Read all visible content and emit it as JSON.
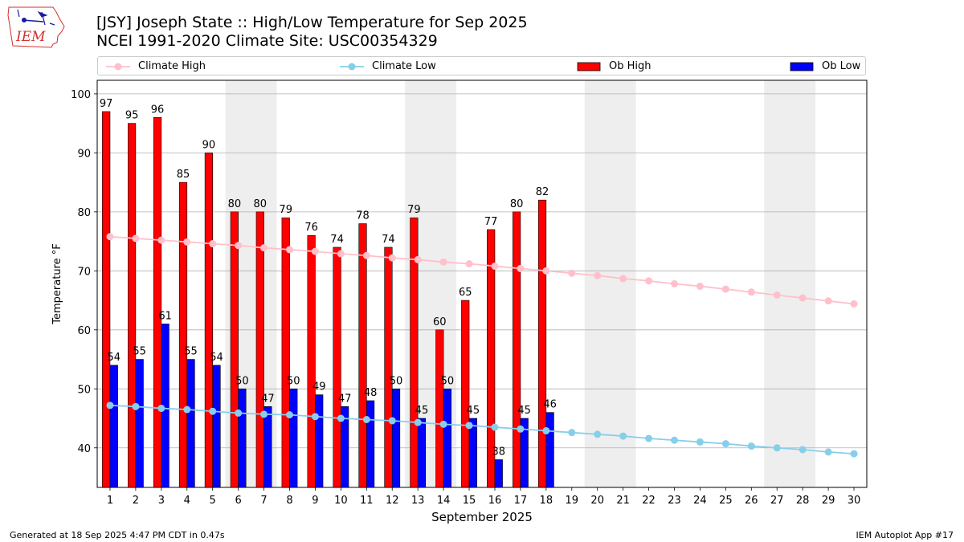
{
  "logo": {
    "text": "IEM",
    "icon": "iowa-state-outline-weather-station-icon"
  },
  "title_line1": "[JSY] Joseph State :: High/Low Temperature for Sep 2025",
  "title_line2": "NCEI 1991-2020 Climate Site: USC00354329",
  "footer_left": "Generated at 18 Sep 2025 4:47 PM CDT in 0.47s",
  "footer_right": "IEM Autoplot App #17",
  "colors": {
    "ob_high": "#ff0000",
    "ob_low": "#0000ff",
    "climate_high": "#ffc0cb",
    "climate_low": "#87ceeb",
    "weekend_band": "#eeeeee",
    "grid": "#b0b0b0"
  },
  "chart_data": {
    "type": "bar",
    "xlabel": "September 2025",
    "ylabel": "Temperature °F",
    "xlim": [
      0.5,
      30.5
    ],
    "ylim": [
      33.3,
      102.3
    ],
    "x_ticks": [
      1,
      2,
      3,
      4,
      5,
      6,
      7,
      8,
      9,
      10,
      11,
      12,
      13,
      14,
      15,
      16,
      17,
      18,
      19,
      20,
      21,
      22,
      23,
      24,
      25,
      26,
      27,
      28,
      29,
      30
    ],
    "y_ticks": [
      40,
      50,
      60,
      70,
      80,
      90,
      100
    ],
    "grid": "horizontal",
    "legend_placement": "top",
    "weekend_bands": [
      [
        6,
        7
      ],
      [
        13,
        14
      ],
      [
        20,
        21
      ],
      [
        27,
        28
      ]
    ],
    "days": [
      1,
      2,
      3,
      4,
      5,
      6,
      7,
      8,
      9,
      10,
      11,
      12,
      13,
      14,
      15,
      16,
      17,
      18
    ],
    "series": [
      {
        "name": "Climate High",
        "type": "line",
        "x": [
          1,
          2,
          3,
          4,
          5,
          6,
          7,
          8,
          9,
          10,
          11,
          12,
          13,
          14,
          15,
          16,
          17,
          18,
          19,
          20,
          21,
          22,
          23,
          24,
          25,
          26,
          27,
          28,
          29,
          30
        ],
        "values": [
          75.8,
          75.5,
          75.2,
          74.9,
          74.6,
          74.3,
          73.9,
          73.6,
          73.3,
          72.9,
          72.6,
          72.2,
          71.9,
          71.5,
          71.2,
          70.8,
          70.4,
          70.0,
          69.6,
          69.2,
          68.7,
          68.3,
          67.8,
          67.4,
          66.9,
          66.4,
          65.9,
          65.4,
          64.9,
          64.4
        ]
      },
      {
        "name": "Climate Low",
        "type": "line",
        "x": [
          1,
          2,
          3,
          4,
          5,
          6,
          7,
          8,
          9,
          10,
          11,
          12,
          13,
          14,
          15,
          16,
          17,
          18,
          19,
          20,
          21,
          22,
          23,
          24,
          25,
          26,
          27,
          28,
          29,
          30
        ],
        "values": [
          47.2,
          47.0,
          46.7,
          46.5,
          46.2,
          45.9,
          45.7,
          45.6,
          45.3,
          45.0,
          44.8,
          44.6,
          44.3,
          44.0,
          43.8,
          43.5,
          43.2,
          42.9,
          42.6,
          42.3,
          42.0,
          41.6,
          41.3,
          41.0,
          40.7,
          40.3,
          40.0,
          39.7,
          39.3,
          39.0
        ]
      },
      {
        "name": "Ob High",
        "type": "bar",
        "values": [
          97,
          95,
          96,
          85,
          90,
          80,
          80,
          79,
          76,
          74,
          78,
          74,
          79,
          60,
          65,
          77,
          80,
          82
        ],
        "labels": [
          "97",
          "95",
          "96",
          "85",
          "90",
          "80",
          "80",
          "79",
          "76",
          "74",
          "78",
          "74",
          "79",
          "60",
          "65",
          "77",
          "80",
          "82"
        ]
      },
      {
        "name": "Ob Low",
        "type": "bar",
        "values": [
          54,
          55,
          61,
          55,
          54,
          50,
          47,
          50,
          49,
          47,
          48,
          50,
          45,
          50,
          45,
          38,
          45,
          46
        ],
        "labels": [
          "54",
          "55",
          "61",
          "55",
          "54",
          "50",
          "47",
          "50",
          "49",
          "47",
          "48",
          "50",
          "45",
          "50",
          "45",
          "38",
          "45",
          "46"
        ]
      }
    ]
  }
}
